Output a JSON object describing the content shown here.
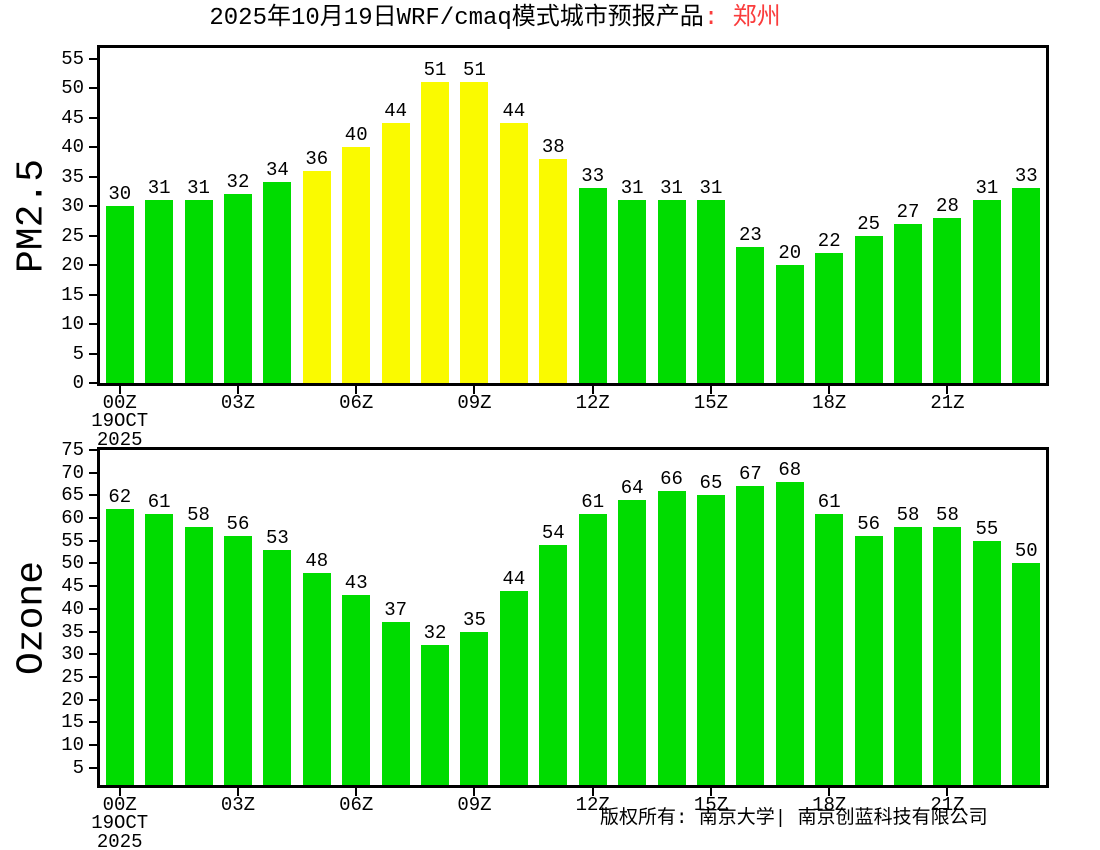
{
  "page": {
    "title_text": "2025年10月19日WRF/cmaq模式城市预报产品",
    "title_city": ": 郑州",
    "copyright": "版权所有: 南京大学| 南京创蓝科技有限公司"
  },
  "colors": {
    "green": "#00dc00",
    "yellow": "#fafa00",
    "title_red": "#fa3c3c",
    "axis": "#000000"
  },
  "chart_data": [
    {
      "type": "bar",
      "title": "",
      "xlabel": "",
      "ylabel": "PM2.5",
      "grid": false,
      "ylim": [
        0,
        56.8
      ],
      "yticks": [
        0,
        5,
        10,
        15,
        20,
        25,
        30,
        35,
        40,
        45,
        50,
        55
      ],
      "values": [
        30,
        31,
        31,
        32,
        34,
        36,
        40,
        44,
        51,
        51,
        44,
        38,
        33,
        31,
        31,
        31,
        23,
        20,
        22,
        25,
        27,
        28,
        31,
        33
      ],
      "bar_colors": [
        "green",
        "green",
        "green",
        "green",
        "green",
        "yellow",
        "yellow",
        "yellow",
        "yellow",
        "yellow",
        "yellow",
        "yellow",
        "green",
        "green",
        "green",
        "green",
        "green",
        "green",
        "green",
        "green",
        "green",
        "green",
        "green",
        "green"
      ],
      "xticks": [
        {
          "index": 0,
          "label": "00Z",
          "sublabels": [
            "19OCT",
            "2025"
          ]
        },
        {
          "index": 3,
          "label": "03Z",
          "sublabels": []
        },
        {
          "index": 6,
          "label": "06Z",
          "sublabels": []
        },
        {
          "index": 9,
          "label": "09Z",
          "sublabels": []
        },
        {
          "index": 12,
          "label": "12Z",
          "sublabels": []
        },
        {
          "index": 15,
          "label": "15Z",
          "sublabels": []
        },
        {
          "index": 18,
          "label": "18Z",
          "sublabels": []
        },
        {
          "index": 21,
          "label": "21Z",
          "sublabels": []
        }
      ]
    },
    {
      "type": "bar",
      "title": "",
      "xlabel": "",
      "ylabel": "Ozone",
      "grid": false,
      "ylim": [
        1.2,
        75
      ],
      "yticks": [
        5,
        10,
        15,
        20,
        25,
        30,
        35,
        40,
        45,
        50,
        55,
        60,
        65,
        70,
        75
      ],
      "values": [
        62,
        61,
        58,
        56,
        53,
        48,
        43,
        37,
        32,
        35,
        44,
        54,
        61,
        64,
        66,
        65,
        67,
        68,
        61,
        56,
        58,
        58,
        55,
        50
      ],
      "bar_colors": [
        "green",
        "green",
        "green",
        "green",
        "green",
        "green",
        "green",
        "green",
        "green",
        "green",
        "green",
        "green",
        "green",
        "green",
        "green",
        "green",
        "green",
        "green",
        "green",
        "green",
        "green",
        "green",
        "green",
        "green"
      ],
      "xticks": [
        {
          "index": 0,
          "label": "00Z",
          "sublabels": [
            "19OCT",
            "2025"
          ]
        },
        {
          "index": 3,
          "label": "03Z",
          "sublabels": []
        },
        {
          "index": 6,
          "label": "06Z",
          "sublabels": []
        },
        {
          "index": 9,
          "label": "09Z",
          "sublabels": []
        },
        {
          "index": 12,
          "label": "12Z",
          "sublabels": []
        },
        {
          "index": 15,
          "label": "15Z",
          "sublabels": []
        },
        {
          "index": 18,
          "label": "18Z",
          "sublabels": []
        },
        {
          "index": 21,
          "label": "21Z",
          "sublabels": []
        }
      ]
    }
  ]
}
